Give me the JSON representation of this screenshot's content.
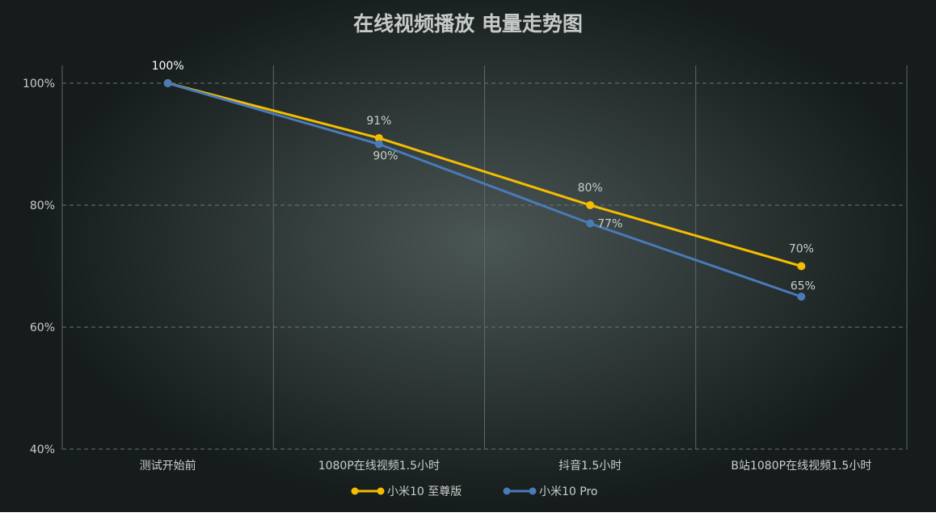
{
  "chart_data": {
    "type": "line",
    "title": "在线视频播放  电量走势图",
    "categories": [
      "测试开始前",
      "1080P在线视频1.5小时",
      "抖音1.5小时",
      "B站1080P在线视频1.5小时"
    ],
    "ylim": [
      40,
      100
    ],
    "yticks": [
      40,
      60,
      80,
      100
    ],
    "ytick_labels": [
      "40%",
      "60%",
      "80%",
      "100%"
    ],
    "grid": {
      "horizontal": "dashed",
      "vertical_separators": true
    },
    "legend_position": "bottom-center",
    "series": [
      {
        "name": "小米10 至尊版",
        "color": "#f5bd00",
        "values": [
          100,
          91,
          80,
          70
        ],
        "labels": [
          "100%",
          "91%",
          "80%",
          "70%"
        ]
      },
      {
        "name": "小米10 Pro",
        "color": "#4a7ab8",
        "values": [
          100,
          90,
          77,
          65
        ],
        "labels": [
          "",
          "90%",
          "77%",
          "65%"
        ]
      }
    ]
  }
}
